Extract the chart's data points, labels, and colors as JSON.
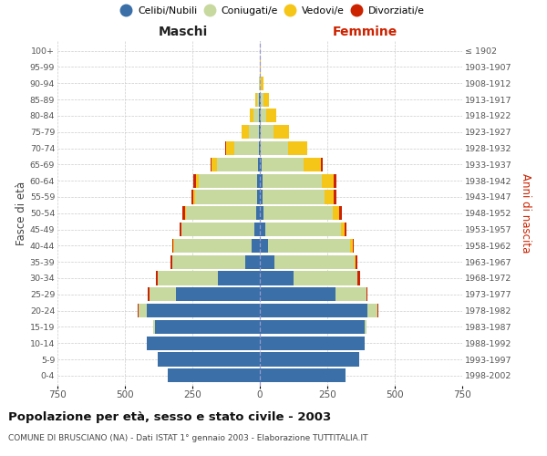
{
  "age_groups": [
    "0-4",
    "5-9",
    "10-14",
    "15-19",
    "20-24",
    "25-29",
    "30-34",
    "35-39",
    "40-44",
    "45-49",
    "50-54",
    "55-59",
    "60-64",
    "65-69",
    "70-74",
    "75-79",
    "80-84",
    "85-89",
    "90-94",
    "95-99",
    "100+"
  ],
  "birth_years": [
    "1998-2002",
    "1993-1997",
    "1988-1992",
    "1983-1987",
    "1978-1982",
    "1973-1977",
    "1968-1972",
    "1963-1967",
    "1958-1962",
    "1953-1957",
    "1948-1952",
    "1943-1947",
    "1938-1942",
    "1933-1937",
    "1928-1932",
    "1923-1927",
    "1918-1922",
    "1913-1917",
    "1908-1912",
    "1903-1907",
    "≤ 1902"
  ],
  "male_celibi": [
    340,
    380,
    420,
    390,
    420,
    310,
    155,
    55,
    30,
    20,
    15,
    10,
    10,
    8,
    5,
    2,
    2,
    2,
    0,
    0,
    0
  ],
  "male_coniugati": [
    0,
    0,
    0,
    5,
    28,
    100,
    222,
    268,
    288,
    270,
    258,
    230,
    218,
    150,
    90,
    40,
    20,
    8,
    3,
    0,
    0
  ],
  "male_vedovi": [
    0,
    0,
    0,
    0,
    0,
    0,
    2,
    2,
    2,
    2,
    5,
    5,
    10,
    20,
    30,
    25,
    15,
    8,
    2,
    0,
    0
  ],
  "male_divorziati": [
    0,
    0,
    0,
    0,
    5,
    5,
    5,
    5,
    5,
    5,
    8,
    8,
    8,
    5,
    5,
    2,
    0,
    0,
    0,
    0,
    0
  ],
  "female_nubili": [
    318,
    368,
    390,
    390,
    400,
    280,
    125,
    55,
    30,
    20,
    15,
    10,
    10,
    8,
    5,
    2,
    2,
    2,
    0,
    0,
    0
  ],
  "female_coniugate": [
    0,
    0,
    0,
    5,
    35,
    115,
    235,
    295,
    305,
    280,
    255,
    230,
    220,
    155,
    100,
    50,
    20,
    10,
    5,
    0,
    0
  ],
  "female_vedove": [
    0,
    0,
    0,
    0,
    0,
    0,
    2,
    5,
    8,
    15,
    25,
    35,
    45,
    65,
    70,
    55,
    40,
    22,
    8,
    2,
    0
  ],
  "female_divorziate": [
    0,
    0,
    0,
    0,
    5,
    5,
    8,
    8,
    5,
    5,
    8,
    10,
    8,
    5,
    2,
    0,
    0,
    0,
    0,
    0,
    0
  ],
  "colors_celibi": "#3a6fa8",
  "colors_coniugati": "#c8d9a0",
  "colors_vedovi": "#f5c518",
  "colors_divorziati": "#cc2200",
  "xlim": 750,
  "xticks": [
    -750,
    -500,
    -250,
    0,
    250,
    500,
    750
  ],
  "title": "Popolazione per età, sesso e stato civile - 2003",
  "subtitle": "COMUNE DI BRUSCIANO (NA) - Dati ISTAT 1° gennaio 2003 - Elaborazione TUTTITALIA.IT",
  "ylabel_left": "Fasce di età",
  "ylabel_right": "Anni di nascita",
  "label_maschi": "Maschi",
  "label_femmine": "Femmine",
  "legend_labels": [
    "Celibi/Nubili",
    "Coniugati/e",
    "Vedovi/e",
    "Divorziati/e"
  ],
  "bg_color": "#ffffff",
  "grid_color": "#cccccc"
}
